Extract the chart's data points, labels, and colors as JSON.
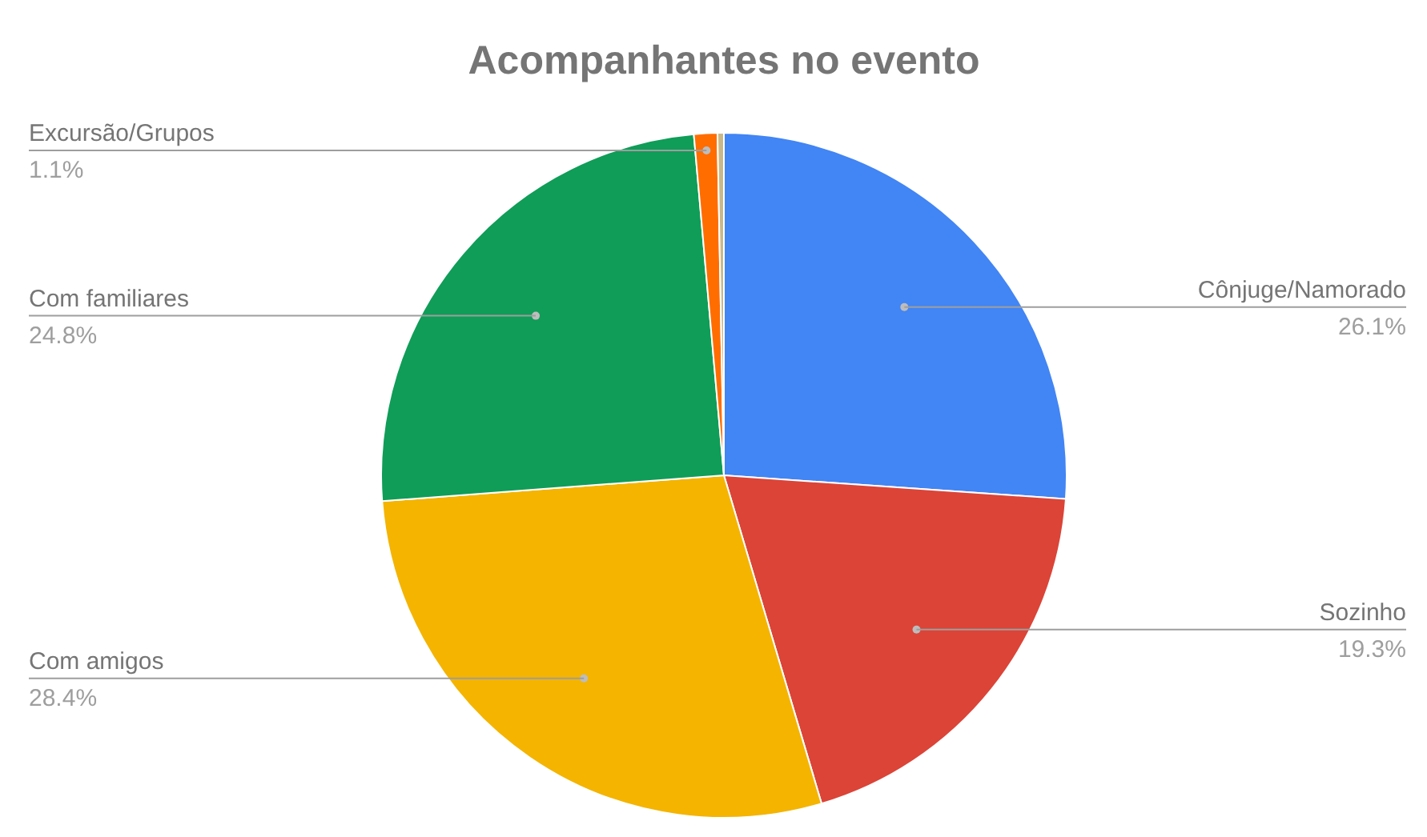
{
  "chart_data": {
    "type": "pie",
    "title": "Acompanhantes no evento",
    "categories": [
      "Cônjuge/Namorado",
      "Sozinho",
      "Com amigos",
      "Com familiares",
      "Excursão/Grupos",
      null
    ],
    "values": [
      26.1,
      19.3,
      28.4,
      24.8,
      1.1,
      0.3
    ],
    "colors": [
      "#4285f4",
      "#db4437",
      "#f4b400",
      "#0f9d58",
      "#ff6d01",
      "#c9b98a"
    ],
    "value_labels": [
      "26.1%",
      "19.3%",
      "28.4%",
      "24.8%",
      "1.1%",
      null
    ],
    "legend": false
  }
}
